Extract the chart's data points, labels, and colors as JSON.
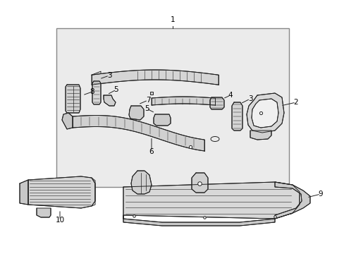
{
  "bg_color": "#ffffff",
  "box_bg": "#ebebeb",
  "box_edge": "#888888",
  "lc": "#222222",
  "lw": 0.7,
  "fig_width": 4.89,
  "fig_height": 3.6,
  "dpi": 100,
  "label_fs": 7.5,
  "leader_lw": 0.7
}
